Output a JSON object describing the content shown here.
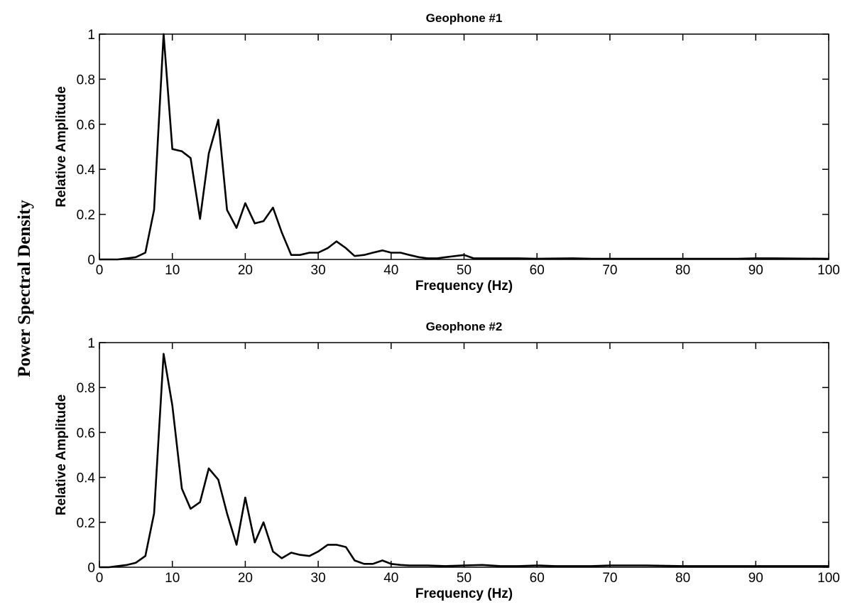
{
  "figure": {
    "ylabel_outer": "Power Spectral Density"
  },
  "chart_data": [
    {
      "type": "line",
      "title": "Geophone #1",
      "xlabel": "Frequency (Hz)",
      "ylabel": "Relative Amplitude",
      "xlim": [
        0,
        100
      ],
      "ylim": [
        0,
        1
      ],
      "xticks": [
        0,
        10,
        20,
        30,
        40,
        50,
        60,
        70,
        80,
        90,
        100
      ],
      "yticks": [
        0,
        0.2,
        0.4,
        0.6,
        0.8,
        1
      ],
      "ytick_labels": [
        "0",
        "0.2",
        "0.4",
        "0.6",
        "0.8",
        "1"
      ],
      "grid": false,
      "line_color": "#000000",
      "series": [
        {
          "x": [
            0,
            1.3,
            2.5,
            3.8,
            5.0,
            6.3,
            7.5,
            8.8,
            10.0,
            11.3,
            12.5,
            13.8,
            15.0,
            16.3,
            17.5,
            18.8,
            20.0,
            21.3,
            22.5,
            23.8,
            25.0,
            26.3,
            27.5,
            28.8,
            30.0,
            31.3,
            32.5,
            33.8,
            35.0,
            36.3,
            37.5,
            38.8,
            40.0,
            41.3,
            42.5,
            43.8,
            45.0,
            46.3,
            47.5,
            48.8,
            50.0,
            51.3,
            52.5,
            55,
            57.5,
            60,
            62.5,
            65,
            67.5,
            70,
            75,
            80,
            85,
            87.5,
            90,
            92.5,
            95,
            100
          ],
          "y": [
            0,
            0,
            0,
            0.005,
            0.01,
            0.03,
            0.22,
            1.0,
            0.49,
            0.48,
            0.45,
            0.18,
            0.47,
            0.62,
            0.22,
            0.14,
            0.25,
            0.16,
            0.17,
            0.23,
            0.12,
            0.02,
            0.02,
            0.03,
            0.03,
            0.05,
            0.08,
            0.05,
            0.015,
            0.02,
            0.03,
            0.04,
            0.03,
            0.03,
            0.02,
            0.01,
            0.005,
            0.005,
            0.01,
            0.015,
            0.02,
            0.005,
            0.005,
            0.005,
            0.005,
            0.003,
            0.004,
            0.005,
            0.003,
            0.003,
            0.003,
            0.003,
            0.003,
            0.003,
            0.005,
            0.005,
            0.004,
            0.003
          ]
        }
      ]
    },
    {
      "type": "line",
      "title": "Geophone #2",
      "xlabel": "Frequency (Hz)",
      "ylabel": "Relative Amplitude",
      "xlim": [
        0,
        100
      ],
      "ylim": [
        0,
        1
      ],
      "xticks": [
        0,
        10,
        20,
        30,
        40,
        50,
        60,
        70,
        80,
        90,
        100
      ],
      "yticks": [
        0,
        0.2,
        0.4,
        0.6,
        0.8,
        1
      ],
      "ytick_labels": [
        "0",
        "0.2",
        "0.4",
        "0.6",
        "0.8",
        "1"
      ],
      "grid": false,
      "line_color": "#000000",
      "series": [
        {
          "x": [
            0,
            1.3,
            2.5,
            3.8,
            5.0,
            6.3,
            7.5,
            8.8,
            10.0,
            11.3,
            12.5,
            13.8,
            15.0,
            16.3,
            17.5,
            18.8,
            20.0,
            21.3,
            22.5,
            23.8,
            25.0,
            26.3,
            27.5,
            28.8,
            30.0,
            31.3,
            32.5,
            33.8,
            35.0,
            36.3,
            37.5,
            38.8,
            40.0,
            41.3,
            42.5,
            45,
            47.5,
            50,
            52.5,
            55,
            57.5,
            60,
            62.5,
            65,
            67.5,
            70,
            75,
            80,
            85,
            90,
            95,
            100
          ],
          "y": [
            0,
            0,
            0.005,
            0.01,
            0.02,
            0.05,
            0.24,
            0.95,
            0.72,
            0.35,
            0.26,
            0.29,
            0.44,
            0.39,
            0.24,
            0.1,
            0.31,
            0.11,
            0.2,
            0.07,
            0.04,
            0.065,
            0.055,
            0.05,
            0.07,
            0.1,
            0.1,
            0.09,
            0.03,
            0.015,
            0.015,
            0.03,
            0.015,
            0.01,
            0.008,
            0.008,
            0.005,
            0.008,
            0.01,
            0.005,
            0.005,
            0.008,
            0.005,
            0.005,
            0.005,
            0.008,
            0.008,
            0.005,
            0.005,
            0.005,
            0.005,
            0.005
          ]
        }
      ]
    }
  ]
}
